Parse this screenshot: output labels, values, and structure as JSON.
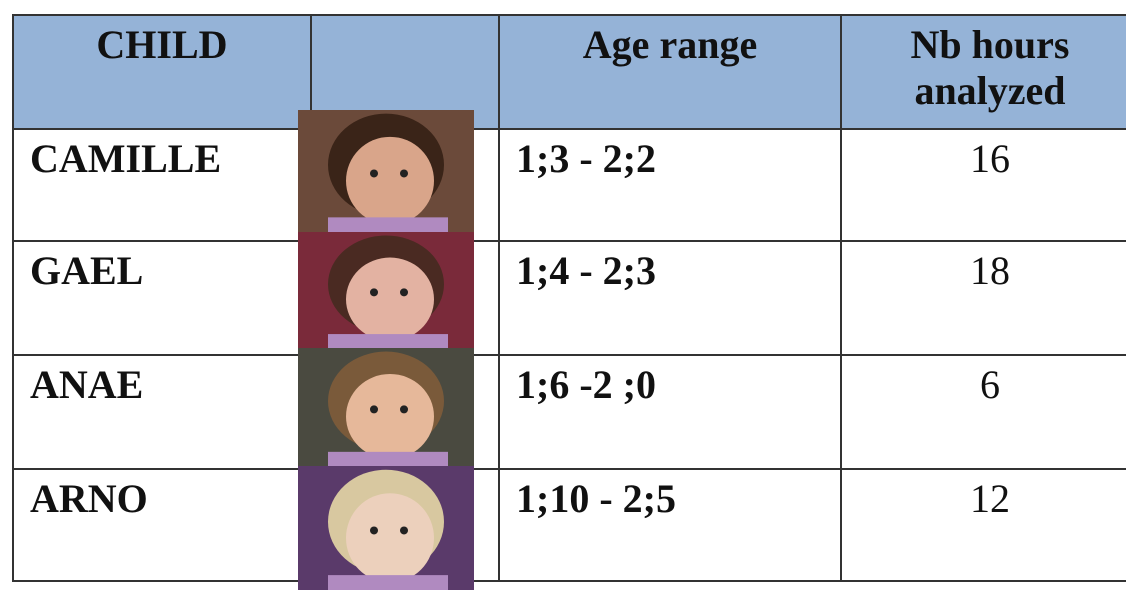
{
  "table": {
    "header": [
      "CHILD",
      "Age range",
      "Nb hours analyzed"
    ],
    "rows": [
      [
        "CAMILLE",
        "1;3 - 2;2",
        16
      ],
      [
        "GAEL",
        "1;4 - 2;3",
        18
      ],
      [
        "ANAE",
        "1;6 -2 ;0",
        6
      ],
      [
        "ARNO",
        "1;10 - 2;5",
        12
      ]
    ]
  }
}
